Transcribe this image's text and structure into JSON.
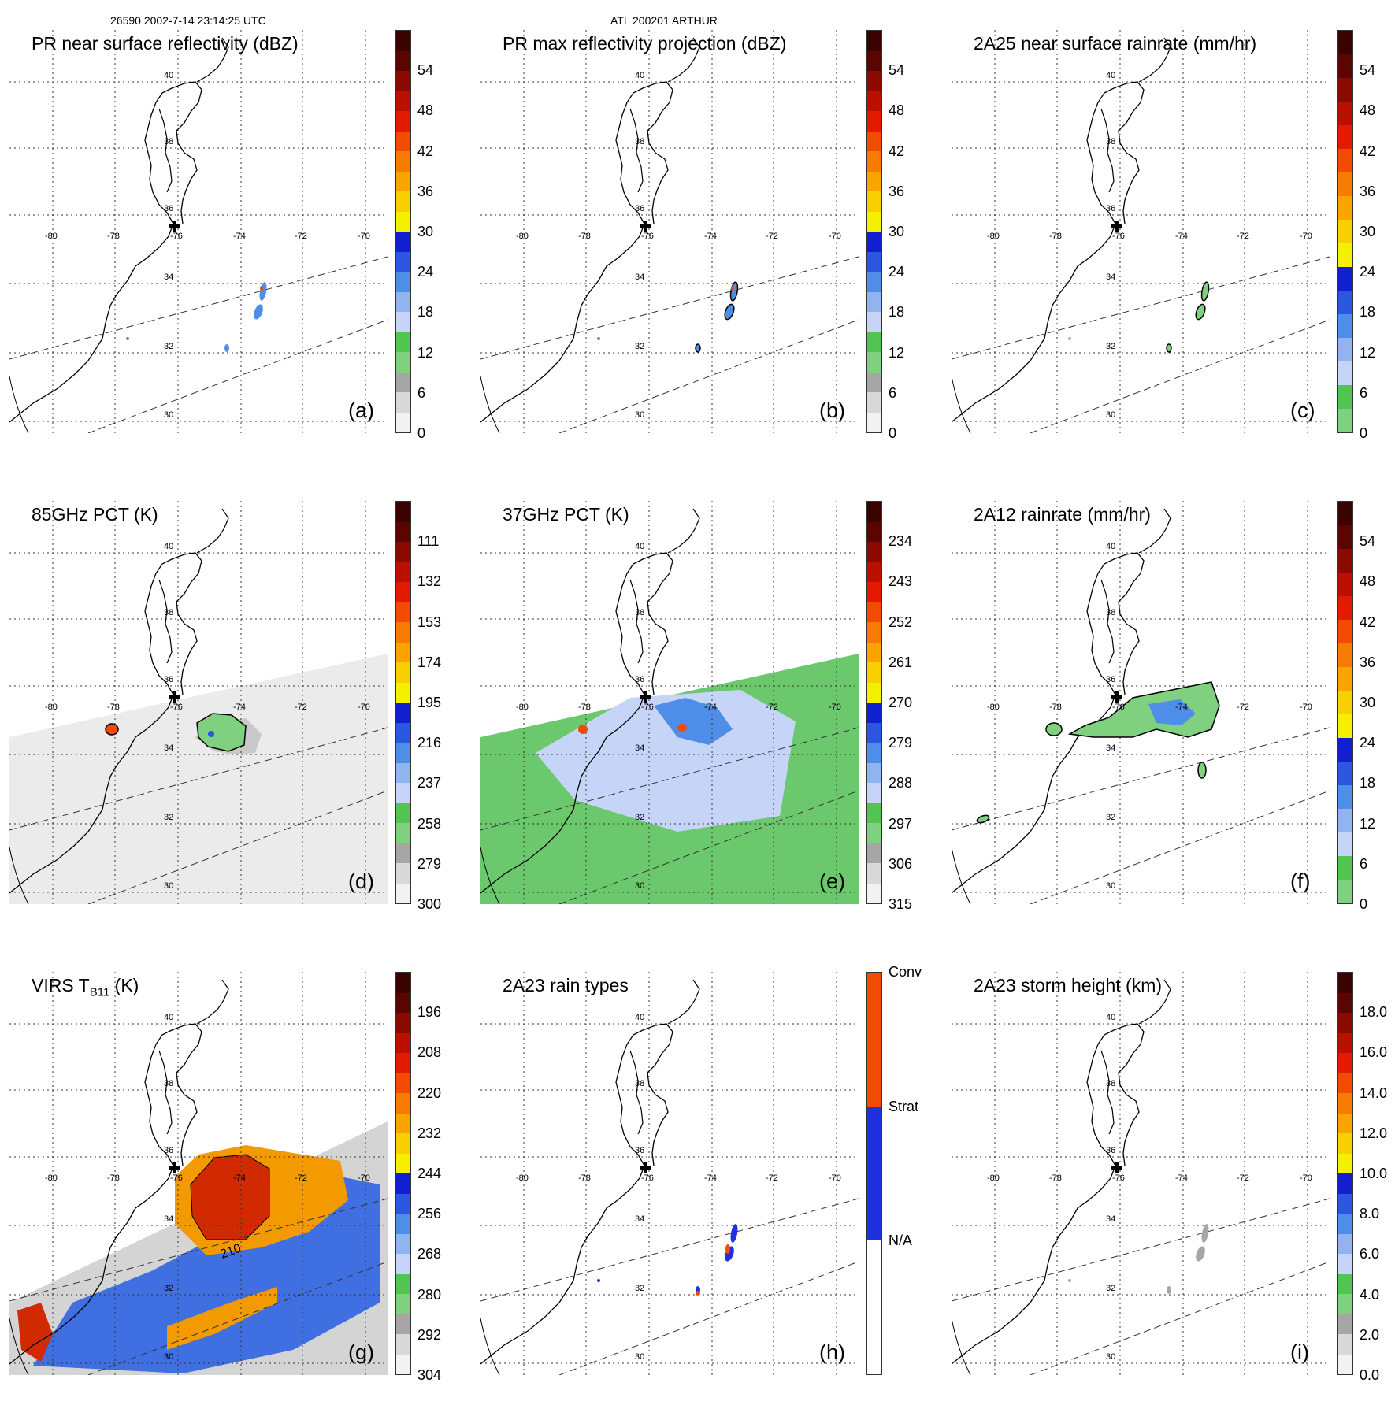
{
  "header": {
    "left": "26590 2002-7-14 23:14:25 UTC",
    "center": "ATL 200201 ARTHUR"
  },
  "panels": [
    {
      "id": "a",
      "title": "PR near surface reflectivity (dBZ)",
      "label": "(a)",
      "colorbar_ticks": [
        "54",
        "48",
        "42",
        "36",
        "30",
        "24",
        "18",
        "12",
        "6",
        "0"
      ],
      "swath": false
    },
    {
      "id": "b",
      "title": "PR max reflectivity projection (dBZ)",
      "label": "(b)",
      "colorbar_ticks": [
        "54",
        "48",
        "42",
        "36",
        "30",
        "24",
        "18",
        "12",
        "6",
        "0"
      ],
      "swath": false
    },
    {
      "id": "c",
      "title": "2A25 near surface rainrate (mm/hr)",
      "label": "(c)",
      "colorbar_ticks": [
        "54",
        "48",
        "42",
        "36",
        "30",
        "24",
        "18",
        "12",
        "6",
        "0"
      ],
      "swath": false
    },
    {
      "id": "d",
      "title": "85GHz PCT (K)",
      "label": "(d)",
      "colorbar_ticks": [
        "111",
        "132",
        "153",
        "174",
        "195",
        "216",
        "237",
        "258",
        "279",
        "300"
      ],
      "swath": "gray"
    },
    {
      "id": "e",
      "title": "37GHz PCT (K)",
      "label": "(e)",
      "colorbar_ticks": [
        "234",
        "243",
        "252",
        "261",
        "270",
        "279",
        "288",
        "297",
        "306",
        "315"
      ],
      "swath": "green"
    },
    {
      "id": "f",
      "title": "2A12 rainrate (mm/hr)",
      "label": "(f)",
      "colorbar_ticks": [
        "54",
        "48",
        "42",
        "36",
        "30",
        "24",
        "18",
        "12",
        "6",
        "0"
      ],
      "swath": false
    },
    {
      "id": "g",
      "title": "VIRS T",
      "title_sub": "B11",
      "title_suffix": " (K)",
      "label": "(g)",
      "colorbar_ticks": [
        "196",
        "208",
        "220",
        "232",
        "244",
        "256",
        "268",
        "280",
        "292",
        "304"
      ],
      "swath": "virs",
      "contour_label": "210"
    },
    {
      "id": "h",
      "title": "2A23 rain types",
      "label": "(h)",
      "colorbar_ticks": [
        "Conv",
        "Strat",
        "N/A"
      ],
      "swath": false
    },
    {
      "id": "i",
      "title": "2A23 storm height (km)",
      "label": "(i)",
      "colorbar_ticks": [
        "18.0",
        "16.0",
        "14.0",
        "12.0",
        "10.0",
        "8.0",
        "6.0",
        "4.0",
        "2.0",
        "0.0"
      ],
      "swath": false
    }
  ],
  "lat_labels": [
    "40",
    "38",
    "36",
    "34",
    "32",
    "30"
  ],
  "lon_labels": [
    "-80",
    "-78",
    "-76",
    "-74",
    "-72",
    "-70"
  ],
  "colors": {
    "reflectivity_scale": [
      "#f2f2f2",
      "#d9d9d9",
      "#a6a6a6",
      "#7fd17f",
      "#52c452",
      "#c6d4f7",
      "#8fb4f0",
      "#4f8ee8",
      "#2a56e0",
      "#1020d0",
      "#f5f000",
      "#f8cf00",
      "#f9a400",
      "#f77b00",
      "#f24a00",
      "#e21a00",
      "#bb0f00",
      "#8b0a00",
      "#5a0500",
      "#3a0300"
    ],
    "rain_scale": [
      "#7fd17f",
      "#52c452",
      "#c6d4f7",
      "#8fb4f0",
      "#4f8ee8",
      "#2a56e0",
      "#1020d0",
      "#f5f000",
      "#f8cf00",
      "#f9a400",
      "#f77b00",
      "#f24a00",
      "#e21a00",
      "#bb0f00",
      "#8b0a00",
      "#5a0500",
      "#3a0300"
    ],
    "raintype_scale": [
      "#ffffff",
      "#1f30e0",
      "#f24a00"
    ],
    "pr_swath_line": "#333333",
    "land": "#ffffff"
  }
}
